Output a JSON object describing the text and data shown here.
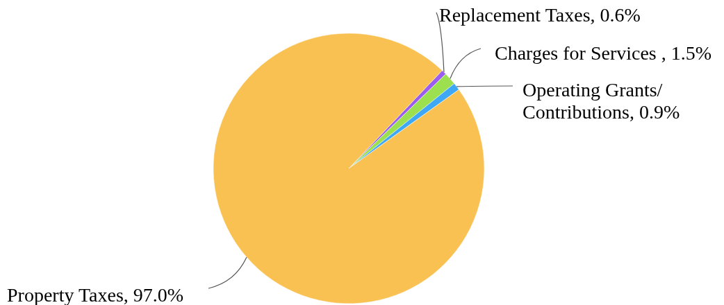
{
  "chart_data": {
    "type": "pie",
    "categories": [
      "Replacement Taxes",
      "Charges for Services ",
      "Operating Grants/ Contributions",
      "Property Taxes"
    ],
    "values": [
      0.6,
      1.5,
      0.9,
      97.0
    ],
    "colors": [
      "#9b5cf0",
      "#9de04f",
      "#3ea8f4",
      "#f9c152"
    ],
    "value_labels": [
      ", 0.6%",
      ", 1.5%",
      ", 0.9%",
      ", 97.0%"
    ]
  }
}
